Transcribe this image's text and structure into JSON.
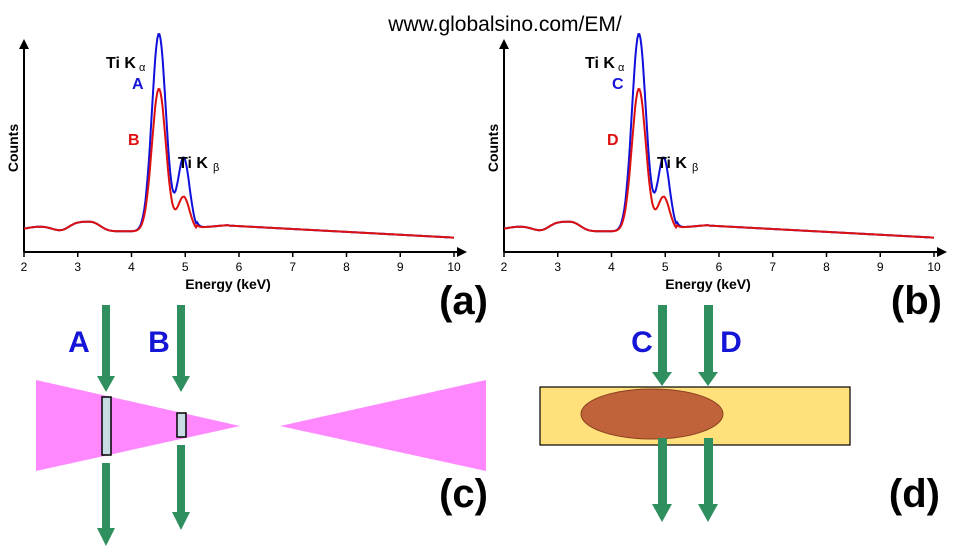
{
  "site_url": "www.globalsino.com/EM/",
  "panels": {
    "a": {
      "label": "(a)",
      "y_axis_label": "Counts",
      "x_axis_label": "Energy (keV)",
      "peak_ka": "Ti K",
      "peak_ka_sub": "α",
      "peak_kb": "Ti K",
      "peak_kb_sub": "β",
      "series_labels": [
        "A",
        "B"
      ]
    },
    "b": {
      "label": "(b)",
      "y_axis_label": "Counts",
      "x_axis_label": "Energy (keV)",
      "peak_ka": "Ti K",
      "peak_ka_sub": "α",
      "peak_kb": "Ti K",
      "peak_kb_sub": "β",
      "series_labels": [
        "C",
        "D"
      ]
    },
    "c": {
      "label": "(c)",
      "beam_labels": [
        "A",
        "B"
      ]
    },
    "d": {
      "label": "(d)",
      "beam_labels": [
        "C",
        "D"
      ]
    }
  },
  "chart_data": [
    {
      "type": "line",
      "panel": "a",
      "xlabel": "Energy (keV)",
      "ylabel": "Counts",
      "xlim": [
        2,
        10
      ],
      "x_ticks": [
        "2",
        "3",
        "4",
        "5",
        "6",
        "7",
        "8",
        "9",
        "10"
      ],
      "grid": false,
      "series": [
        {
          "name": "A",
          "color": "#1010dd",
          "peak_ka_height": 0.86,
          "peak_kb_height": 0.32
        },
        {
          "name": "B",
          "color": "#dd1010",
          "peak_ka_height": 0.62,
          "peak_kb_height": 0.15
        }
      ]
    },
    {
      "type": "line",
      "panel": "b",
      "xlabel": "Energy (keV)",
      "ylabel": "Counts",
      "xlim": [
        2,
        10
      ],
      "x_ticks": [
        "2",
        "3",
        "4",
        "5",
        "6",
        "7",
        "8",
        "9",
        "10"
      ],
      "grid": false,
      "series": [
        {
          "name": "C",
          "color": "#1010dd",
          "peak_ka_height": 0.86,
          "peak_kb_height": 0.32
        },
        {
          "name": "D",
          "color": "#dd1010",
          "peak_ka_height": 0.62,
          "peak_kb_height": 0.15
        }
      ]
    }
  ],
  "colors": {
    "blue_label": "#1515d8",
    "red_label": "#e01010",
    "beam_arrow": "#2f8f5f",
    "wedge": "#ff88ff",
    "film": "#ffe07a",
    "particle": "#c0623a",
    "window": "#c8dce6"
  }
}
